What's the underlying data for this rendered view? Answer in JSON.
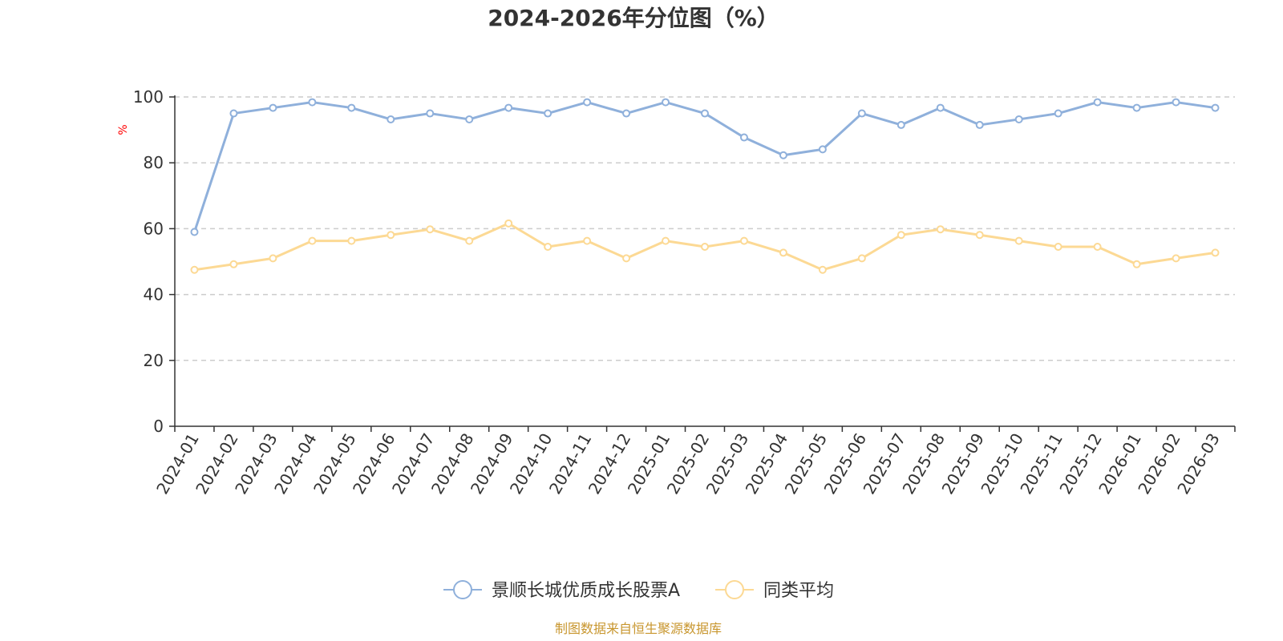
{
  "chart_data": {
    "type": "line",
    "title": "2024-2026年分位图（%）",
    "ylabel": "%",
    "xlabel": "",
    "ylim": [
      0,
      100
    ],
    "yticks": [
      0,
      20,
      40,
      60,
      80,
      100
    ],
    "grid": "horizontal dashed",
    "legend_position": "bottom-center",
    "x": [
      "2024-01",
      "2024-02",
      "2024-03",
      "2024-04",
      "2024-05",
      "2024-06",
      "2024-07",
      "2024-08",
      "2024-09",
      "2024-10",
      "2024-11",
      "2024-12",
      "2025-01",
      "2025-02",
      "2025-03",
      "2025-04",
      "2025-05",
      "2025-06",
      "2025-07",
      "2025-08",
      "2025-09",
      "2025-10",
      "2025-11",
      "2025-12",
      "2026-01",
      "2026-02",
      "2026-03"
    ],
    "series": [
      {
        "name": "景顺长城优质成长股票A",
        "color": "#8fb0db",
        "values": [
          59,
          95,
          96.7,
          98.4,
          96.7,
          93.2,
          95,
          93.2,
          96.7,
          95,
          98.4,
          95,
          98.4,
          95,
          87.7,
          82.3,
          84.1,
          95,
          91.5,
          96.7,
          91.5,
          93.2,
          95,
          98.4,
          96.7,
          98.4,
          96.7
        ]
      },
      {
        "name": "同类平均",
        "color": "#fcd994",
        "values": [
          47.5,
          49.2,
          51,
          56.3,
          56.3,
          58.1,
          59.8,
          56.3,
          61.6,
          54.5,
          56.3,
          51,
          56.3,
          54.5,
          56.3,
          52.7,
          47.5,
          51,
          58.1,
          59.8,
          58.1,
          56.3,
          54.5,
          54.5,
          49.2,
          51,
          52.7
        ]
      }
    ]
  },
  "source_text": "制图数据来自恒生聚源数据库"
}
